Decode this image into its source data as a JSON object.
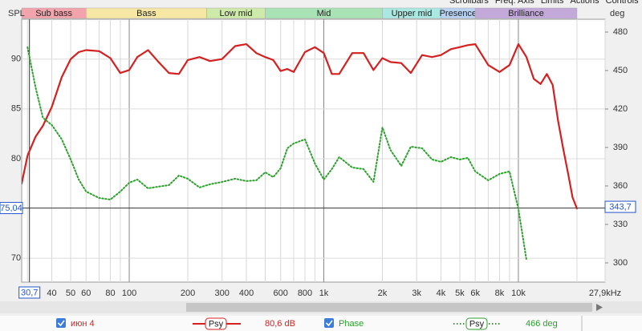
{
  "menu": [
    "Scrollbars",
    "Freq. Axis",
    "Limits",
    "Actions",
    "Controls"
  ],
  "chart_data": {
    "type": "line",
    "x_scale": "log",
    "y_label": "SPL",
    "y2_label": "deg",
    "x": [
      28,
      30,
      33,
      36,
      40,
      45,
      50,
      55,
      60,
      70,
      80,
      90,
      100,
      110,
      125,
      140,
      160,
      180,
      200,
      230,
      260,
      300,
      350,
      400,
      450,
      500,
      550,
      600,
      650,
      700,
      800,
      900,
      1000,
      1100,
      1200,
      1400,
      1600,
      1800,
      2000,
      2200,
      2500,
      2800,
      3200,
      3600,
      4000,
      4500,
      5000,
      5500,
      6000,
      7000,
      8000,
      9000,
      10000,
      11000,
      12000,
      13000,
      14000,
      15000,
      16000,
      17000,
      18000,
      19000,
      20000
    ],
    "xlim": [
      28,
      27900
    ],
    "xticks": [
      40,
      50,
      60,
      80,
      100,
      200,
      300,
      400,
      600,
      800,
      {
        "value": 1000,
        "label": "1k"
      },
      {
        "value": 2000,
        "label": "2k"
      },
      {
        "value": 3000,
        "label": "3k"
      },
      {
        "value": 4000,
        "label": "4k"
      },
      {
        "value": 5000,
        "label": "5k"
      },
      {
        "value": 6000,
        "label": "6k"
      },
      {
        "value": 8000,
        "label": "8k"
      },
      {
        "value": 10000,
        "label": "10k"
      },
      {
        "value": 27900,
        "label": "27,9kHz"
      }
    ],
    "x_minor_ticks": [
      30,
      70,
      90,
      500,
      700,
      900,
      7000,
      9000,
      20000
    ],
    "ylim": [
      67.6,
      94
    ],
    "yticks": [
      70,
      80,
      85,
      90
    ],
    "y2lim": [
      285,
      490
    ],
    "y2ticks": [
      300,
      330,
      360,
      390,
      420,
      450,
      480
    ],
    "grid": true,
    "bands": [
      {
        "name": "Sub bass",
        "color": "#f2a3ab",
        "range": [
          20,
          60
        ]
      },
      {
        "name": "Bass",
        "color": "#f6e7a4",
        "range": [
          60,
          250
        ]
      },
      {
        "name": "Low mid",
        "color": "#cdeaa9",
        "range": [
          250,
          500
        ]
      },
      {
        "name": "Mid",
        "color": "#a9e2b4",
        "range": [
          500,
          2000
        ]
      },
      {
        "name": "Upper mid",
        "color": "#a9e9e2",
        "range": [
          2000,
          4000
        ]
      },
      {
        "name": "Presence",
        "color": "#b9d2f2",
        "range": [
          4000,
          6000
        ]
      },
      {
        "name": "Brilliance",
        "color": "#c3a9da",
        "range": [
          6000,
          20000
        ]
      }
    ],
    "cursor": {
      "x": {
        "value": 30.7,
        "label": "30,7"
      },
      "y": {
        "value": 75.04,
        "label": "75,04"
      },
      "y2": {
        "value": 343.7,
        "label": "343,7"
      }
    },
    "series": [
      {
        "name": "июн 4",
        "color": "#d42020",
        "style": "solid",
        "smoothing": "Psy",
        "readout": "80,6 dB",
        "values": [
          77.5,
          80.3,
          82.2,
          83.3,
          85.2,
          88.2,
          90.0,
          90.7,
          90.9,
          90.8,
          90.1,
          88.6,
          88.9,
          90.2,
          90.9,
          89.8,
          88.6,
          88.5,
          89.9,
          90.2,
          89.8,
          90.0,
          91.3,
          91.5,
          90.6,
          90.2,
          89.9,
          88.8,
          89.0,
          88.7,
          90.7,
          91.2,
          90.6,
          88.5,
          88.5,
          90.6,
          90.6,
          88.9,
          90.1,
          89.7,
          89.6,
          88.6,
          90.4,
          90.2,
          90.4,
          91.0,
          91.2,
          91.4,
          91.5,
          89.4,
          88.7,
          89.4,
          91.5,
          90.2,
          88.0,
          87.5,
          88.5,
          87.4,
          83.8,
          81.0,
          78.5,
          76.1,
          75.0
        ]
      },
      {
        "name": "Phase",
        "axis": "y2",
        "color": "#2ca02c",
        "style": "dotted",
        "smoothing": "Psy",
        "readout": "466 deg",
        "values": [
          null,
          468.1,
          436.9,
          413.1,
          407.5,
          396.3,
          380.6,
          365,
          355.6,
          350.6,
          349.4,
          355.6,
          362.5,
          365,
          358.1,
          359.4,
          360.6,
          368.1,
          365.6,
          358.8,
          361.3,
          363.1,
          365.6,
          363.8,
          364.4,
          370.6,
          366.9,
          373.8,
          389.4,
          393.1,
          396.3,
          377.5,
          365,
          373.1,
          382.5,
          374.4,
          373.1,
          363.1,
          405.6,
          388.1,
          375.6,
          390.6,
          389.4,
          380.6,
          378.8,
          382.5,
          380.6,
          381.9,
          371.3,
          364.4,
          369.4,
          371.3,
          341.9,
          302.5,
          null,
          null,
          null,
          null,
          null,
          null,
          null,
          null,
          null
        ]
      }
    ]
  }
}
